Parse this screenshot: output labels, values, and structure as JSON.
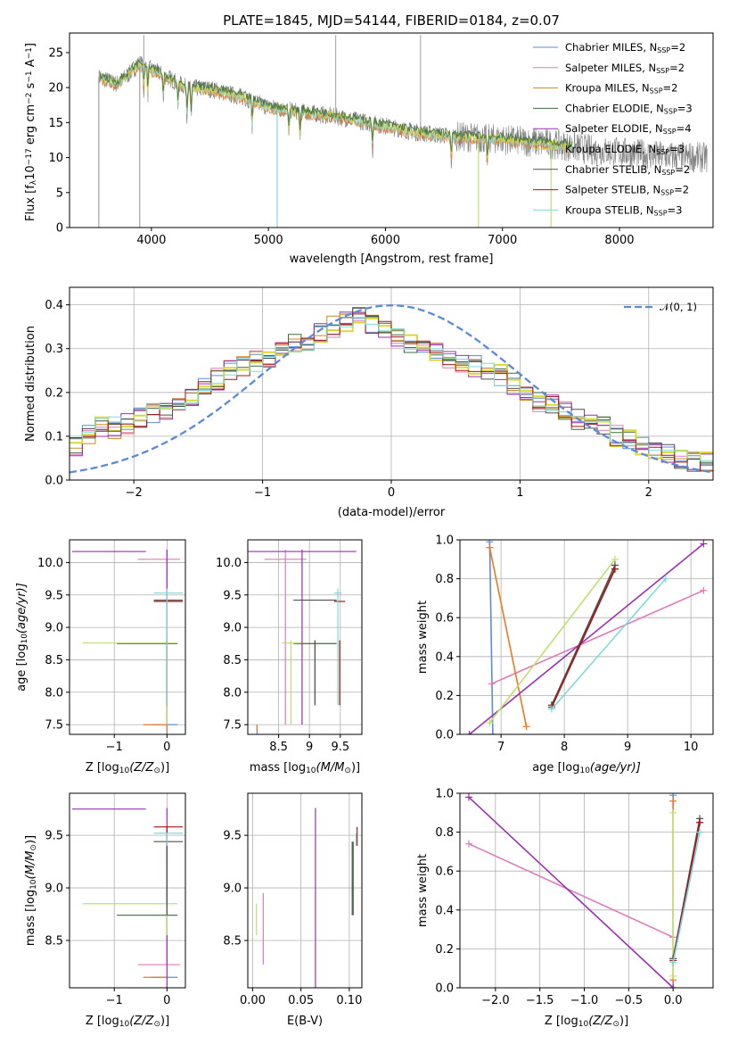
{
  "colors": {
    "Chabrier MILES": "#5b8bd8",
    "Salpeter MILES": "#e07ab8",
    "Kroupa MILES": "#cc8a20",
    "Chabrier ELODIE": "#3c6b3c",
    "Salpeter ELODIE": "#9a2fb5",
    "Kroupa ELODIE": "#d9d93a",
    "Chabrier STELIB": "#505050",
    "Salpeter STELIB": "#aa1515",
    "Kroupa STELIB": "#7fd9d9",
    "data_spectrum": "#808080",
    "normal_curve": "#5b8bd8",
    "orange_model": "#ee7722",
    "lime_model": "#bde070"
  },
  "chart_data": [
    {
      "id": "spectrum",
      "type": "line",
      "title": "PLATE=1845, MJD=54144, FIBERID=0184, z=0.07",
      "xlabel": "wavelength [Angstrom, rest frame]",
      "ylabel_parts": [
        "Flux [f",
        "λ",
        "10",
        "−17",
        " erg cm",
        "−2",
        " s",
        "−1",
        " A",
        "−1",
        "]"
      ],
      "xlim": [
        3300,
        8800
      ],
      "ylim": [
        0,
        27.8
      ],
      "xticks": [
        4000,
        5000,
        6000,
        7000,
        8000
      ],
      "yticks": [
        0,
        5,
        10,
        15,
        20,
        25
      ],
      "legend_position": "top-right",
      "legend": [
        {
          "name": "Chabrier MILES",
          "n": "2"
        },
        {
          "name": "Salpeter MILES",
          "n": "2"
        },
        {
          "name": "Kroupa MILES",
          "n": "2"
        },
        {
          "name": "Chabrier ELODIE",
          "n": "3"
        },
        {
          "name": "Salpeter ELODIE",
          "n": "4"
        },
        {
          "name": "Kroupa ELODIE",
          "n": "3"
        },
        {
          "name": "Chabrier STELIB",
          "n": "2"
        },
        {
          "name": "Salpeter STELIB",
          "n": "2"
        },
        {
          "name": "Kroupa STELIB",
          "n": "3"
        }
      ],
      "legend_n_label": "N",
      "legend_n_sub": "SSP",
      "continuum": [
        [
          3550,
          21.5
        ],
        [
          3700,
          20.5
        ],
        [
          3800,
          21.8
        ],
        [
          3900,
          23.5
        ],
        [
          4000,
          22.5
        ],
        [
          4100,
          21.8
        ],
        [
          4300,
          20.0
        ],
        [
          4500,
          19.8
        ],
        [
          4800,
          18.5
        ],
        [
          5000,
          17.2
        ],
        [
          5300,
          16.5
        ],
        [
          5600,
          15.8
        ],
        [
          6000,
          14.5
        ],
        [
          6300,
          13.5
        ],
        [
          6600,
          13.0
        ],
        [
          6800,
          12.8
        ],
        [
          7000,
          12.6
        ],
        [
          7200,
          12.3
        ],
        [
          7400,
          12.0
        ],
        [
          7600,
          11.5
        ],
        [
          7800,
          11.0
        ],
        [
          8000,
          10.8
        ],
        [
          8300,
          10.3
        ],
        [
          8700,
          10.0
        ]
      ],
      "absorption_lines": [
        3934,
        3969,
        4102,
        4227,
        4304,
        4340,
        4861,
        5175,
        5270,
        5890,
        6563,
        6870
      ],
      "spikes_down": [
        [
          3550,
          0
        ],
        [
          3900,
          0
        ],
        [
          5075,
          0
        ],
        [
          6795,
          0
        ],
        [
          7415,
          0
        ]
      ],
      "spikes_up": [
        [
          3935,
          27.5
        ],
        [
          5575,
          27.5
        ],
        [
          6300,
          27.5
        ]
      ]
    },
    {
      "id": "residuals",
      "type": "line",
      "xlabel": "(data-model)/error",
      "ylabel": "Normed distribution",
      "xlim": [
        -2.5,
        2.5
      ],
      "ylim": [
        0,
        0.44
      ],
      "xticks": [
        -2,
        -1,
        0,
        1,
        2
      ],
      "yticks": [
        0.0,
        0.1,
        0.2,
        0.3,
        0.4
      ],
      "legend_position": "top-right",
      "legend_label": "𝒩(0, 1)",
      "bin_edges_start": -2.5,
      "bin_width": 0.1,
      "hist_base": [
        0.08,
        0.1,
        0.12,
        0.12,
        0.13,
        0.14,
        0.15,
        0.16,
        0.17,
        0.19,
        0.21,
        0.23,
        0.25,
        0.26,
        0.27,
        0.28,
        0.3,
        0.31,
        0.32,
        0.34,
        0.35,
        0.36,
        0.37,
        0.36,
        0.35,
        0.33,
        0.31,
        0.3,
        0.29,
        0.28,
        0.27,
        0.26,
        0.25,
        0.24,
        0.22,
        0.2,
        0.18,
        0.17,
        0.16,
        0.14,
        0.13,
        0.12,
        0.1,
        0.09,
        0.08,
        0.07,
        0.06,
        0.05,
        0.045,
        0.04
      ]
    },
    {
      "id": "age-vs-Z",
      "type": "scatter",
      "xlabel_parts": [
        "Z [log",
        "10",
        "(Z/Z",
        "⊙",
        ")]"
      ],
      "ylabel_parts": [
        "age  [log",
        "10",
        "(age/yr)]"
      ],
      "xlim": [
        -1.85,
        0.35
      ],
      "ylim": [
        7.35,
        10.35
      ],
      "xticks": [
        -1,
        0
      ],
      "yticks": [
        7.5,
        8.0,
        8.5,
        9.0,
        9.5,
        10.0
      ]
    },
    {
      "id": "age-vs-mass",
      "type": "scatter",
      "xlabel_parts": [
        "mass [log",
        "10",
        "(M/M",
        "⊙",
        ")]"
      ],
      "xlim": [
        8.0,
        9.85
      ],
      "ylim": [
        7.35,
        10.35
      ],
      "xticks": [
        8.5,
        9.0,
        9.5
      ],
      "yticks": [
        7.5,
        8.0,
        8.5,
        9.0,
        9.5,
        10.0
      ]
    },
    {
      "id": "weight-vs-age",
      "type": "line",
      "xlabel_parts": [
        "age  [log",
        "10",
        "(age/yr)]"
      ],
      "ylabel": "mass weight",
      "xlim": [
        6.35,
        10.35
      ],
      "ylim": [
        0,
        1.0
      ],
      "xticks": [
        7,
        8,
        9,
        10
      ],
      "yticks": [
        0.0,
        0.2,
        0.4,
        0.6,
        0.8,
        1.0
      ]
    },
    {
      "id": "mass-vs-Z",
      "type": "scatter",
      "xlabel_parts": [
        "Z [log",
        "10",
        "(Z/Z",
        "⊙",
        ")]"
      ],
      "ylabel_parts": [
        "mass [log",
        "10",
        "(M/M",
        "⊙",
        ")]"
      ],
      "xlim": [
        -1.85,
        0.35
      ],
      "ylim": [
        8.05,
        9.9
      ],
      "xticks": [
        -1,
        0
      ],
      "yticks": [
        8.5,
        9.0,
        9.5
      ]
    },
    {
      "id": "mass-vs-EBV",
      "type": "scatter",
      "xlabel": "E(B-V)",
      "xlim": [
        -0.005,
        0.113
      ],
      "ylim": [
        8.05,
        9.9
      ],
      "xticks": [
        0.0,
        0.05,
        0.1
      ],
      "xtick_labels": [
        "0.00",
        "0.05",
        "0.10"
      ],
      "yticks": [
        8.5,
        9.0,
        9.5
      ]
    },
    {
      "id": "weight-vs-Z",
      "type": "line",
      "xlabel_parts": [
        "Z [log",
        "10",
        "(Z/Z",
        "⊙",
        ")]"
      ],
      "ylabel": "mass weight",
      "xlim": [
        -2.4,
        0.45
      ],
      "ylim": [
        0,
        1.0
      ],
      "xticks": [
        -2.0,
        -1.5,
        -1.0,
        -0.5,
        0.0
      ],
      "xtick_labels": [
        "−2.0",
        "−1.5",
        "−1.0",
        "−0.5",
        "0.0"
      ],
      "yticks": [
        0.0,
        0.2,
        0.4,
        0.6,
        0.8,
        1.0
      ]
    }
  ],
  "models": [
    {
      "key": "Chabrier MILES",
      "color": "#5b8bd8",
      "age": [
        6.82,
        6.87
      ],
      "w": [
        0.99,
        0.0
      ],
      "Z": [
        0.0,
        0.0
      ],
      "mass": [
        8.15,
        8.15
      ],
      "ebv": 0.022
    },
    {
      "key": "Salpeter MILES",
      "color": "#e07ab8",
      "age": [
        6.85,
        10.2
      ],
      "w": [
        0.26,
        0.74
      ],
      "Z": [
        0.0,
        -2.3
      ],
      "mass": [
        8.27,
        8.95
      ],
      "ebv": 0.011
    },
    {
      "key": "Kroupa MILES",
      "color": "#ee7722",
      "age": [
        6.82,
        7.4
      ],
      "w": [
        0.96,
        0.04
      ],
      "Z": [
        0.0,
        0.0
      ],
      "mass": [
        8.15,
        8.15
      ],
      "ebv": 0.022
    },
    {
      "key": "Chabrier ELODIE",
      "color": "#3c6b3c",
      "age": [
        7.8,
        8.8
      ],
      "w": [
        0.15,
        0.85
      ],
      "Z": [
        0.0,
        0.3
      ],
      "mass": [
        8.74,
        9.44
      ],
      "ebv": 0.104
    },
    {
      "key": "Salpeter ELODIE",
      "color": "#9a2fb5",
      "age": [
        6.5,
        10.2
      ],
      "w": [
        0.0,
        0.98
      ],
      "Z": [
        0.0,
        -2.3
      ],
      "mass": [
        8.0,
        9.76
      ],
      "ebv": 0.065
    },
    {
      "key": "Kroupa ELODIE",
      "color": "#bde070",
      "age": [
        6.82,
        8.8
      ],
      "w": [
        0.06,
        0.9
      ],
      "Z": [
        0.0,
        0.0
      ],
      "mass": [
        8.55,
        8.85
      ],
      "ebv": 0.004
    },
    {
      "key": "Chabrier STELIB",
      "color": "#505050",
      "age": [
        7.8,
        8.8
      ],
      "w": [
        0.15,
        0.87
      ],
      "Z": [
        0.0,
        0.3
      ],
      "mass": [
        8.74,
        9.44
      ],
      "ebv": 0.103
    },
    {
      "key": "Salpeter STELIB",
      "color": "#aa1515",
      "age": [
        7.8,
        8.8
      ],
      "w": [
        0.14,
        0.85
      ],
      "Z": [
        0.0,
        0.3
      ],
      "mass": [
        9.4,
        9.58
      ],
      "ebv": 0.108
    },
    {
      "key": "Kroupa STELIB",
      "color": "#7fd9d9",
      "age": [
        7.8,
        9.6
      ],
      "w": [
        0.13,
        0.8
      ],
      "Z": [
        0.0,
        0.3
      ],
      "mass": [
        9.4,
        9.52
      ],
      "ebv": 0.107
    }
  ],
  "avg_points": [
    {
      "key": "Chabrier MILES",
      "Z": [
        -0.3,
        0.2
      ],
      "age": [
        7.5,
        7.5
      ],
      "mass": [
        8.15,
        8.15
      ]
    },
    {
      "key": "Salpeter MILES",
      "Z": [
        -0.55,
        0.25
      ],
      "age": [
        10.05,
        10.05
      ],
      "mass": [
        8.27,
        8.27
      ]
    },
    {
      "key": "Kroupa MILES",
      "Z": [
        -0.45,
        0.0
      ],
      "age": [
        7.5,
        7.5
      ],
      "mass": [
        8.15,
        8.15
      ]
    },
    {
      "key": "Chabrier ELODIE",
      "Z": [
        -0.95,
        0.2
      ],
      "age": [
        8.75,
        8.75
      ],
      "mass": [
        8.74,
        8.74
      ]
    },
    {
      "key": "Salpeter ELODIE",
      "Z": [
        -1.8,
        -0.4
      ],
      "age": [
        10.17,
        10.17
      ],
      "mass": [
        9.75,
        9.75
      ]
    },
    {
      "key": "Kroupa ELODIE",
      "Z": [
        -1.6,
        0.2
      ],
      "age": [
        8.76,
        8.76
      ],
      "mass": [
        8.85,
        8.85
      ]
    },
    {
      "key": "Chabrier STELIB",
      "Z": [
        -0.25,
        0.3
      ],
      "age": [
        9.42,
        9.42
      ],
      "mass": [
        9.44,
        9.44
      ]
    },
    {
      "key": "Salpeter STELIB",
      "Z": [
        -0.25,
        0.3
      ],
      "age": [
        9.4,
        9.4
      ],
      "mass": [
        9.58,
        9.58
      ]
    },
    {
      "key": "Kroupa STELIB",
      "Z": [
        -0.25,
        0.3
      ],
      "age": [
        9.53,
        9.53
      ],
      "mass": [
        9.52,
        9.52
      ]
    }
  ]
}
